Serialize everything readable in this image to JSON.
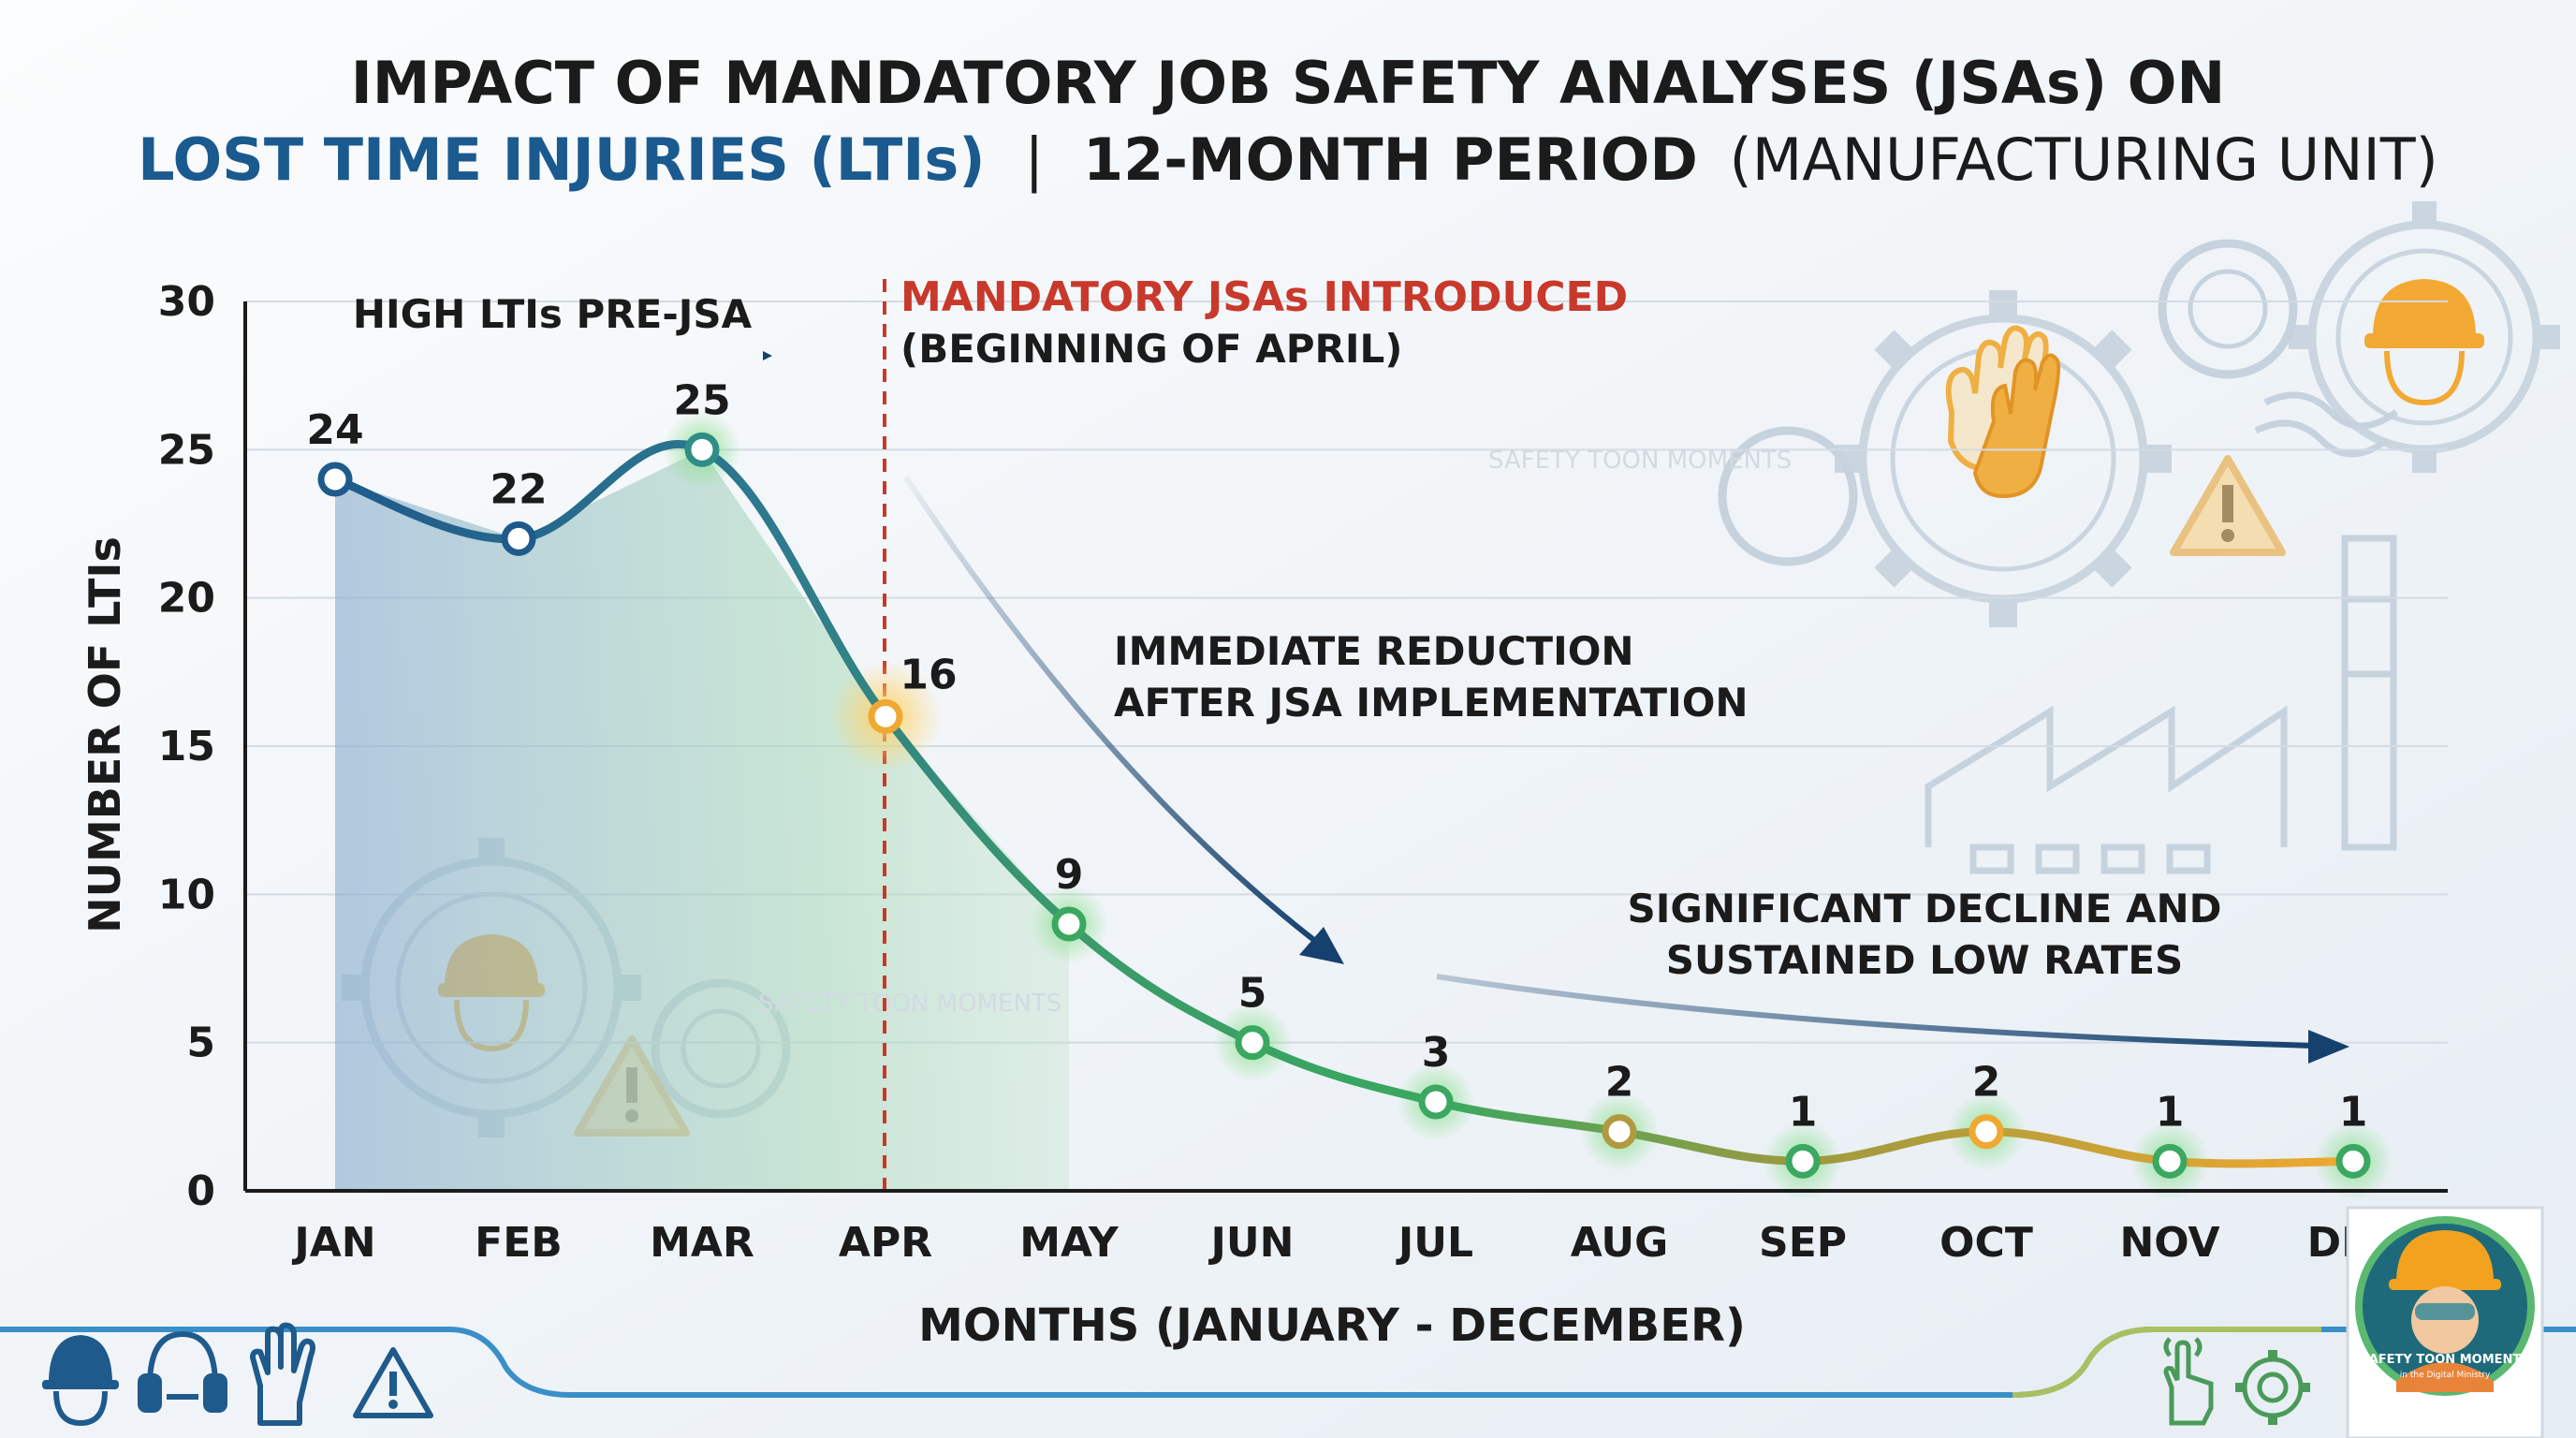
{
  "title": {
    "line1": "IMPACT OF MANDATORY JOB SAFETY ANALYSES (JSAs) ON",
    "line2_blue": "LOST TIME INJURIES (LTIs)",
    "line2_sep": "|",
    "line2_bold": "12-MONTH PERIOD",
    "line2_regular": "(MANUFACTURING UNIT)"
  },
  "annotations": {
    "pre_jsa": "HIGH LTIs PRE-JSA",
    "intro_line1": "MANDATORY JSAs INTRODUCED",
    "intro_line2": "(BEGINNING OF APRIL)",
    "reduction_line1": "IMMEDIATE REDUCTION",
    "reduction_line2": "AFTER JSA IMPLEMENTATION",
    "decline_line1": "SIGNIFICANT DECLINE AND",
    "decline_line2": "SUSTAINED LOW RATES"
  },
  "watermark": "SAFETY TOON MOMENTS",
  "logo": {
    "line1": "SAFETY TOON MOMENTS",
    "line2": "in the Digital Ministry"
  },
  "colors": {
    "line_blue": "#1f5a8c",
    "line_teal": "#2e8e86",
    "line_green": "#3aa860",
    "line_orange": "#f0a830",
    "intro_red": "#c8392b",
    "arrow_navy": "#16416e"
  },
  "chart_data": {
    "type": "line",
    "title": "IMPACT OF MANDATORY JOB SAFETY ANALYSES (JSAs) ON LOST TIME INJURIES (LTIs) | 12-MONTH PERIOD (MANUFACTURING UNIT)",
    "categories": [
      "JAN",
      "FEB",
      "MAR",
      "APR",
      "MAY",
      "JUN",
      "JUL",
      "AUG",
      "SEP",
      "OCT",
      "NOV",
      "DEC"
    ],
    "series": [
      {
        "name": "Number of LTIs",
        "values": [
          24,
          22,
          25,
          16,
          9,
          5,
          3,
          2,
          1,
          2,
          1,
          1
        ]
      }
    ],
    "xlabel": "MONTHS (JANUARY - DECEMBER)",
    "ylabel": "NUMBER OF LTIs",
    "ylim": [
      0,
      30
    ],
    "yticks": [
      0,
      5,
      10,
      15,
      20,
      25,
      30
    ],
    "grid": true,
    "intervention": {
      "category": "APR",
      "label": "MANDATORY JSAs INTRODUCED"
    }
  }
}
